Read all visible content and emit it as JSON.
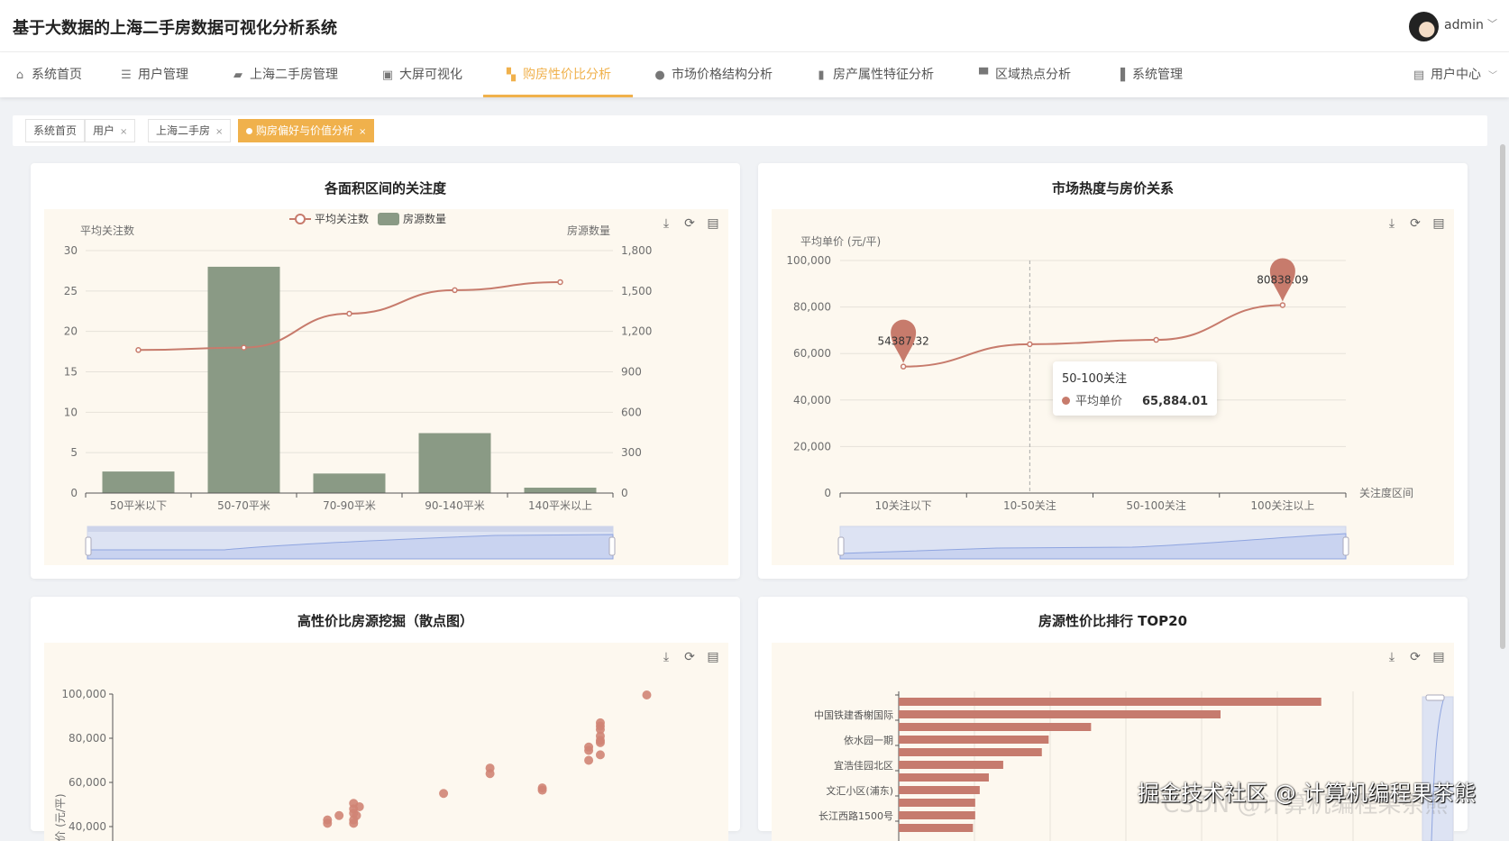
{
  "header": {
    "title": "基于大数据的上海二手房数据可视化分析系统",
    "user": "admin"
  },
  "nav": {
    "items": [
      {
        "label": "系统首页",
        "icon": "home-icon"
      },
      {
        "label": "用户管理",
        "icon": "list-icon"
      },
      {
        "label": "上海二手房管理",
        "icon": "briefcase-icon"
      },
      {
        "label": "大屏可视化",
        "icon": "clipboard-icon"
      },
      {
        "label": "购房性价比分析",
        "icon": "ticket-icon",
        "active": true
      },
      {
        "label": "市场价格结构分析",
        "icon": "bulb-icon"
      },
      {
        "label": "房产属性特征分析",
        "icon": "books-icon"
      },
      {
        "label": "区域热点分析",
        "icon": "stamp-icon"
      },
      {
        "label": "系统管理",
        "icon": "bar-chart-icon"
      }
    ],
    "user_center": "用户中心"
  },
  "tags": [
    {
      "label": "系统首页"
    },
    {
      "label": "用户",
      "closable": true
    },
    {
      "label": "上海二手房",
      "closable": true
    },
    {
      "label": "购房偏好与价值分析",
      "closable": true,
      "active": true
    }
  ],
  "colors": {
    "accent": "#f0b14c",
    "bar": "#8a9a85",
    "line": "#c77b6c",
    "chart_bg": "#fdf8ef"
  },
  "toolbox": {
    "icons": [
      "download-icon",
      "refresh-icon",
      "data-view-icon"
    ]
  },
  "chart_data": [
    {
      "type": "bar",
      "title": "各面积区间的关注度",
      "categories": [
        "50平米以下",
        "50-70平米",
        "70-90平米",
        "90-140平米",
        "140平米以上"
      ],
      "series": [
        {
          "name": "平均关注数",
          "type": "line",
          "axis": "left",
          "values": [
            17.7,
            18.0,
            22.2,
            25.1,
            26.1
          ]
        },
        {
          "name": "房源数量",
          "type": "bar",
          "axis": "right",
          "values": [
            160,
            1680,
            145,
            445,
            40
          ]
        }
      ],
      "ylabel_left": "平均关注数",
      "ylabel_right": "房源数量",
      "ylim_left": [
        0,
        30
      ],
      "yticks_left": [
        "0",
        "5",
        "10",
        "15",
        "20",
        "25",
        "30"
      ],
      "ylim_right": [
        0,
        1800
      ],
      "yticks_right": [
        "0",
        "300",
        "600",
        "900",
        "1,200",
        "1,500",
        "1,800"
      ],
      "legend": "top-center",
      "grid": true,
      "datazoom": true
    },
    {
      "type": "line",
      "title": "市场热度与房价关系",
      "categories": [
        "10关注以下",
        "10-50关注",
        "50-100关注",
        "100关注以上"
      ],
      "series": [
        {
          "name": "平均单价",
          "values": [
            54387.32,
            64000,
            65884.01,
            80838.09
          ]
        }
      ],
      "ylabel": "平均单价 (元/平)",
      "xlabel": "关注度区间",
      "ylim": [
        0,
        100000
      ],
      "yticks": [
        "0",
        "20,000",
        "40,000",
        "60,000",
        "80,000",
        "100,000"
      ],
      "markpoints": [
        "54387.32",
        "80838.09"
      ],
      "tooltip": {
        "category": "50-100关注",
        "series": "平均单价",
        "value": "65,884.01"
      },
      "grid": true,
      "datazoom": true
    },
    {
      "type": "scatter",
      "title": "高性价比房源挖掘（散点图）",
      "ylabel": "单价 (元/平)",
      "ylim": [
        0,
        100000
      ],
      "yticks": [
        "40,000",
        "60,000",
        "80,000",
        "100,000"
      ],
      "points": [
        [
          92,
          99600
        ],
        [
          84,
          87000
        ],
        [
          84,
          85500
        ],
        [
          84,
          84000
        ],
        [
          84,
          81000
        ],
        [
          84,
          79000
        ],
        [
          84,
          78000
        ],
        [
          84,
          72500
        ],
        [
          82,
          76000
        ],
        [
          82,
          74500
        ],
        [
          82,
          70000
        ],
        [
          65,
          66500
        ],
        [
          65,
          64000
        ],
        [
          74,
          57500
        ],
        [
          74,
          56500
        ],
        [
          57,
          55000
        ],
        [
          42.5,
          49000
        ],
        [
          41.5,
          50500
        ],
        [
          41.5,
          48000
        ],
        [
          41.5,
          46000
        ],
        [
          42,
          45000
        ],
        [
          41.5,
          43000
        ],
        [
          41.5,
          41500
        ],
        [
          39,
          45000
        ],
        [
          37,
          43000
        ],
        [
          37,
          41500
        ]
      ]
    },
    {
      "type": "bar",
      "orientation": "horizontal",
      "title": "房源性价比排行 TOP20",
      "categories": [
        "",
        "中国铁建香榭国际",
        "",
        "依水园一期",
        "",
        "宜浩佳园北区",
        "",
        "文汇小区(浦东)",
        "",
        "长江西路1500号",
        ""
      ],
      "values": [
        5.58,
        4.25,
        2.54,
        1.98,
        1.89,
        1.38,
        1.19,
        1.07,
        1.01,
        1.01,
        0.98
      ],
      "datazoom": "vertical",
      "grid": true
    }
  ],
  "watermark": {
    "text": "掘金技术社区 @ 计算机编程果茶熊",
    "text2": "CSDN @计算机编程果茶熊"
  }
}
